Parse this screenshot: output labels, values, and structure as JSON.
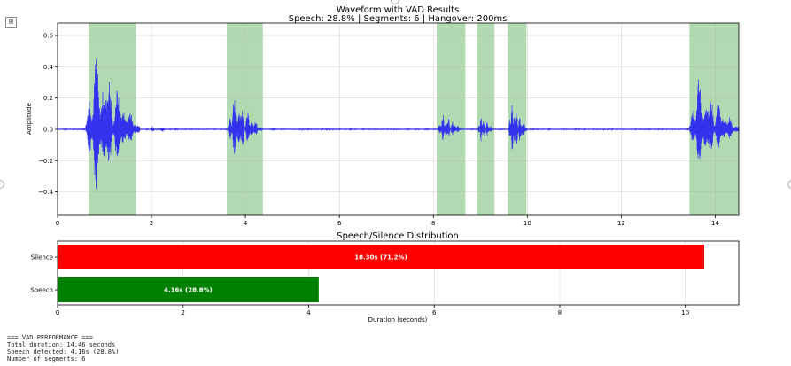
{
  "ui": {
    "output_icon": "⊞"
  },
  "chart_data": [
    {
      "type": "line",
      "title": "Waveform with VAD Results",
      "subtitle": "Speech: 28.8% | Segments: 6 | Hangover: 200ms",
      "xlabel": "",
      "ylabel": "Amplitude",
      "xlim": [
        0,
        14.5
      ],
      "ylim": [
        -0.55,
        0.68
      ],
      "xticks": [
        0,
        2,
        4,
        6,
        8,
        10,
        12,
        14
      ],
      "yticks": [
        -0.4,
        -0.2,
        0.0,
        0.2,
        0.4,
        0.6
      ],
      "ytick_labels": [
        "−0.4",
        "−0.2",
        "0.0",
        "0.2",
        "0.4",
        "0.6"
      ],
      "waveform_color": "#3333ee",
      "segment_color": "#7fbf7f",
      "speech_segments": [
        [
          0.66,
          1.67
        ],
        [
          3.6,
          4.37
        ],
        [
          8.07,
          8.68
        ],
        [
          8.93,
          9.3
        ],
        [
          9.58,
          9.98
        ],
        [
          13.45,
          14.5
        ]
      ],
      "waveform_bursts": [
        {
          "start": 0.6,
          "end": 1.75,
          "peak_pos": 0.62,
          "peak_neg": 0.48
        },
        {
          "start": 2.0,
          "end": 2.1,
          "peak_pos": 0.03,
          "peak_neg": 0.03
        },
        {
          "start": 2.2,
          "end": 2.3,
          "peak_pos": 0.03,
          "peak_neg": 0.04
        },
        {
          "start": 3.62,
          "end": 4.35,
          "peak_pos": 0.26,
          "peak_neg": 0.2
        },
        {
          "start": 8.1,
          "end": 8.62,
          "peak_pos": 0.13,
          "peak_neg": 0.1
        },
        {
          "start": 8.95,
          "end": 9.28,
          "peak_pos": 0.12,
          "peak_neg": 0.1
        },
        {
          "start": 9.6,
          "end": 10.0,
          "peak_pos": 0.23,
          "peak_neg": 0.23
        },
        {
          "start": 13.45,
          "end": 14.5,
          "peak_pos": 0.41,
          "peak_neg": 0.3
        }
      ]
    },
    {
      "type": "bar",
      "orientation": "horizontal",
      "title": "Speech/Silence Distribution",
      "xlabel": "Duration (seconds)",
      "xlim": [
        0,
        10.85
      ],
      "xticks": [
        0,
        2,
        4,
        6,
        8,
        10
      ],
      "categories": [
        "Silence",
        "Speech"
      ],
      "values": [
        10.3,
        4.16
      ],
      "colors": [
        "#ff0000",
        "#008000"
      ],
      "bar_labels": [
        "10.30s (71.2%)",
        "4.16s (28.8%)"
      ]
    }
  ],
  "performance_text": [
    "=== VAD PERFORMANCE ===",
    "Total duration: 14.46 seconds",
    "Speech detected: 4.16s (28.8%)",
    "Number of segments: 6"
  ]
}
